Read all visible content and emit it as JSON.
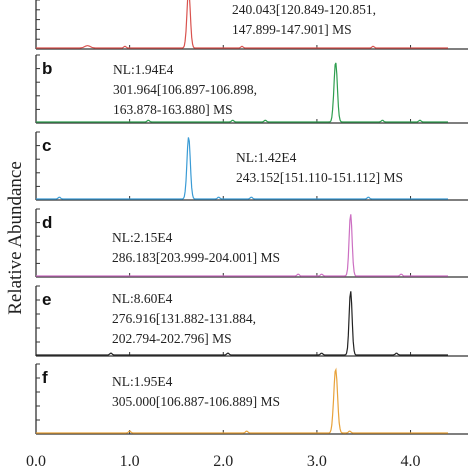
{
  "chart_data": {
    "type": "line",
    "ylabel": "Relative Abundance",
    "xlim": [
      0.0,
      4.4
    ],
    "x_ticks": [
      "0.0",
      "1.0",
      "2.0",
      "3.0",
      "4.0"
    ],
    "x_tick_values": [
      0.0,
      1.0,
      2.0,
      3.0,
      4.0
    ],
    "panels": [
      {
        "letter": "",
        "color": "#d9534f",
        "annotation": [
          "240.043[120.849-120.851,",
          "147.899-147.901] MS"
        ],
        "peaks": [
          {
            "x": 1.63,
            "height": 1.0,
            "width": 0.018
          },
          {
            "x": 0.55,
            "height": 0.04,
            "width": 0.03
          }
        ],
        "noise": [
          0.95,
          2.2,
          3.6
        ]
      },
      {
        "letter": "b",
        "color": "#2e9e4f",
        "annotation": [
          "NL:1.94E4",
          "301.964[106.897-106.898,",
          "163.878-163.880] MS"
        ],
        "peaks": [
          {
            "x": 3.2,
            "height": 1.0,
            "width": 0.018
          }
        ],
        "noise": [
          1.2,
          2.1,
          2.45,
          3.7,
          4.1
        ]
      },
      {
        "letter": "c",
        "color": "#3a9bd5",
        "annotation": [
          "NL:1.42E4",
          "243.152[151.110-151.112] MS"
        ],
        "peaks": [
          {
            "x": 1.63,
            "height": 1.0,
            "width": 0.018
          }
        ],
        "noise": [
          0.25,
          1.95,
          2.3,
          3.55
        ]
      },
      {
        "letter": "d",
        "color": "#cc6fc2",
        "annotation": [
          "NL:2.15E4",
          "286.183[203.999-204.001] MS"
        ],
        "peaks": [
          {
            "x": 3.36,
            "height": 1.0,
            "width": 0.016
          }
        ],
        "noise": [
          2.8,
          3.05,
          3.9
        ]
      },
      {
        "letter": "e",
        "color": "#222222",
        "annotation": [
          "NL:8.60E4",
          "276.916[131.882-131.884,",
          "202.794-202.796] MS"
        ],
        "peaks": [
          {
            "x": 3.36,
            "height": 1.0,
            "width": 0.016
          }
        ],
        "noise": [
          0.8,
          2.05,
          3.05,
          3.85
        ]
      },
      {
        "letter": "f",
        "color": "#e8a23a",
        "annotation": [
          "NL:1.95E4",
          "305.000[106.887-106.889] MS"
        ],
        "peaks": [
          {
            "x": 3.2,
            "height": 1.0,
            "width": 0.02
          }
        ],
        "noise": [
          1.0,
          2.25,
          3.35
        ]
      }
    ]
  }
}
